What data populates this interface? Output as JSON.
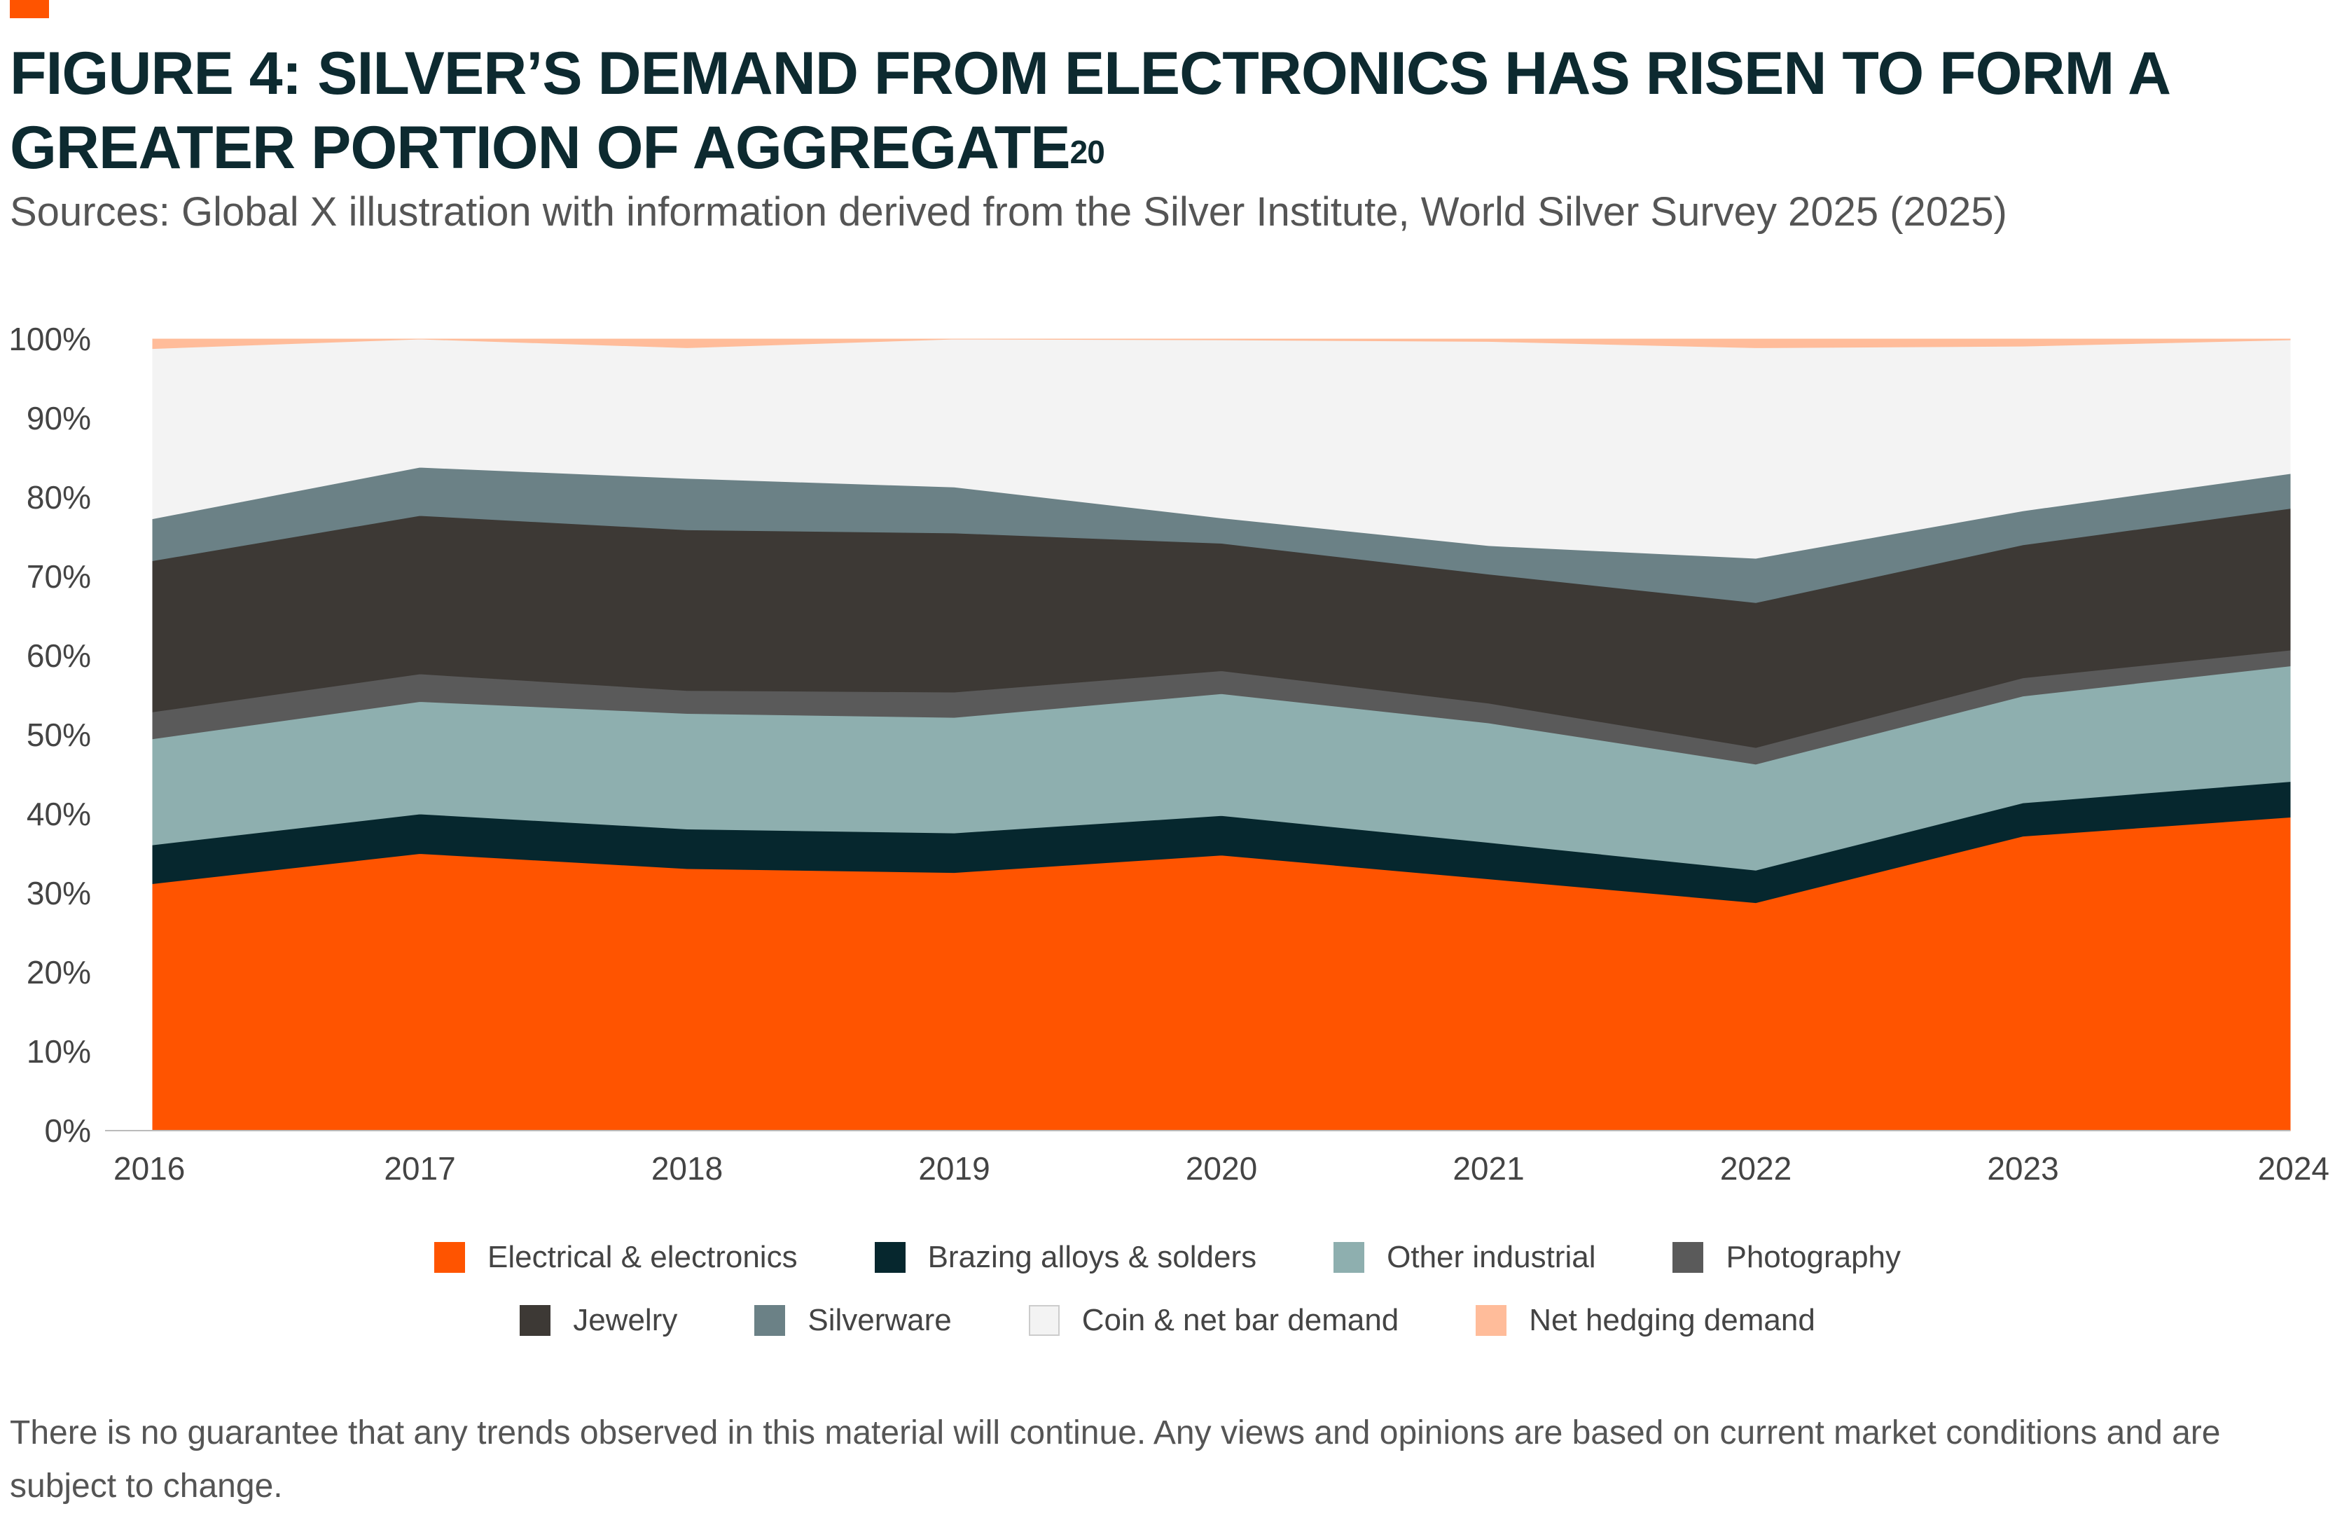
{
  "header": {
    "title": "FIGURE 4: SILVER’S DEMAND FROM ELECTRONICS HAS RISEN TO FORM A GREATER PORTION OF AGGREGATE",
    "title_superscript": "20",
    "subtitle": "Sources: Global X illustration with information derived from the Silver Institute, World Silver Survey 2025 (2025)"
  },
  "chart_data": {
    "type": "area",
    "stacked": true,
    "title": "FIGURE 4: SILVER’S DEMAND FROM ELECTRONICS HAS RISEN TO FORM A GREATER PORTION OF AGGREGATE",
    "x": [
      "2016",
      "2017",
      "2018",
      "2019",
      "2020",
      "2021",
      "2022",
      "2023",
      "2024"
    ],
    "ylim": [
      0,
      100
    ],
    "yticks": [
      0,
      10,
      20,
      30,
      40,
      50,
      60,
      70,
      80,
      90,
      100
    ],
    "ytick_labels": [
      "0%",
      "10%",
      "20%",
      "30%",
      "40%",
      "50%",
      "60%",
      "70%",
      "80%",
      "90%",
      "100%"
    ],
    "grid": false,
    "legend_position": "bottom",
    "series": [
      {
        "name": "Electrical & electronics",
        "color": "#ff5400",
        "values": [
          31.2,
          35.0,
          33.1,
          32.6,
          34.8,
          31.8,
          28.8,
          37.2,
          39.6
        ]
      },
      {
        "name": "Brazing alloys & solders",
        "color": "#06272e",
        "values": [
          4.9,
          5.0,
          5.0,
          5.0,
          5.0,
          4.6,
          4.1,
          4.2,
          4.5
        ]
      },
      {
        "name": "Other industrial",
        "color": "#8eafaf",
        "values": [
          13.4,
          14.2,
          14.6,
          14.6,
          15.4,
          15.1,
          13.4,
          13.5,
          14.6
        ]
      },
      {
        "name": "Photography",
        "color": "#5a5a5a",
        "values": [
          3.4,
          3.5,
          2.9,
          3.2,
          2.9,
          2.5,
          2.1,
          2.3,
          2.0
        ]
      },
      {
        "name": "Jewelry",
        "color": "#3d3935",
        "values": [
          19.1,
          20.0,
          20.3,
          20.1,
          16.1,
          16.3,
          18.3,
          16.8,
          17.9
        ]
      },
      {
        "name": "Silverware",
        "color": "#6b8186",
        "values": [
          5.3,
          6.1,
          6.5,
          5.8,
          3.2,
          3.6,
          5.6,
          4.3,
          4.4
        ]
      },
      {
        "name": "Coin & net bar demand",
        "color": "#f3f3f3",
        "values": [
          21.5,
          16.2,
          16.5,
          18.7,
          22.5,
          25.8,
          26.6,
          20.8,
          16.9
        ]
      },
      {
        "name": "Net hedging demand",
        "color": "#ffbc9a",
        "values": [
          1.2,
          0.0,
          1.1,
          0.0,
          0.1,
          0.3,
          1.1,
          0.9,
          0.1
        ]
      }
    ]
  },
  "footnote": "There is no guarantee that any trends observed in this material will continue. Any views and opinions are based on current market conditions and are subject to change."
}
